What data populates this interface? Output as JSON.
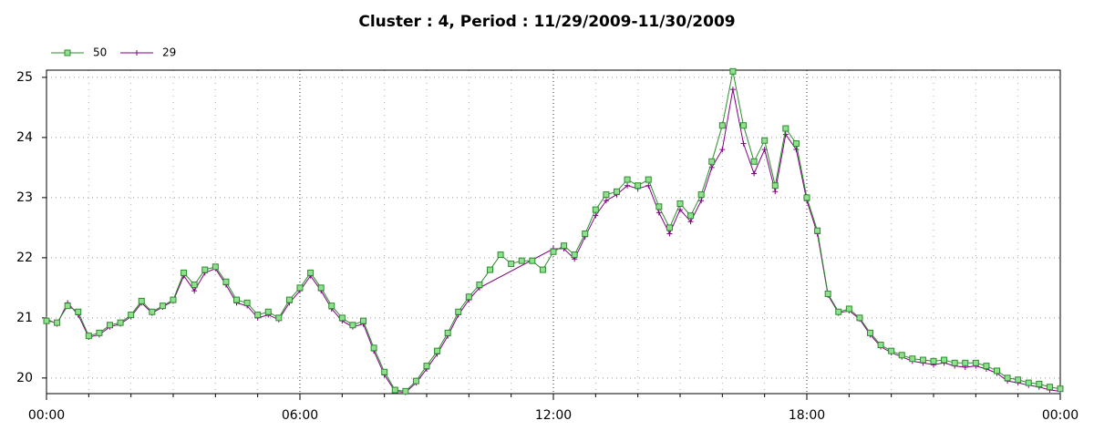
{
  "chart_data": {
    "type": "line",
    "title": "Cluster : 4, Period : 11/29/2009-11/30/2009",
    "xlim": [
      0,
      24
    ],
    "ylim": [
      19.74,
      25.12
    ],
    "xticks": [
      {
        "value": 0,
        "label": "00:00"
      },
      {
        "value": 6,
        "label": "06:00"
      },
      {
        "value": 12,
        "label": "12:00"
      },
      {
        "value": 18,
        "label": "18:00"
      },
      {
        "value": 24,
        "label": "00:00"
      }
    ],
    "xminor_ticks": [
      1,
      2,
      3,
      4,
      5,
      7,
      8,
      9,
      10,
      11,
      13,
      14,
      15,
      16,
      17,
      19,
      20,
      21,
      22,
      23
    ],
    "yticks": [
      20,
      21,
      22,
      23,
      24,
      25
    ],
    "grid": true,
    "legend": "top-left",
    "series": [
      {
        "name": "50",
        "color": "#2e8b2e",
        "marker": "square",
        "x": [
          0,
          0.25,
          0.5,
          0.75,
          1,
          1.25,
          1.5,
          1.75,
          2,
          2.25,
          2.5,
          2.75,
          3,
          3.25,
          3.5,
          3.75,
          4,
          4.25,
          4.5,
          4.75,
          5,
          5.25,
          5.5,
          5.75,
          6,
          6.25,
          6.5,
          6.75,
          7,
          7.25,
          7.5,
          7.75,
          8,
          8.25,
          8.5,
          8.75,
          9,
          9.25,
          9.5,
          9.75,
          10,
          10.25,
          10.5,
          10.75,
          11,
          11.25,
          11.5,
          11.75,
          12,
          12.25,
          12.5,
          12.75,
          13,
          13.25,
          13.5,
          13.75,
          14,
          14.25,
          14.5,
          14.75,
          15,
          15.25,
          15.5,
          15.75,
          16,
          16.25,
          16.5,
          16.75,
          17,
          17.25,
          17.5,
          17.75,
          18,
          18.25,
          18.5,
          18.75,
          19,
          19.25,
          19.5,
          19.75,
          20,
          20.25,
          20.5,
          20.75,
          21,
          21.25,
          21.5,
          21.75,
          22,
          22.25,
          22.5,
          22.75,
          23,
          23.25,
          23.5,
          23.75,
          24
        ],
        "values": [
          20.95,
          20.92,
          21.2,
          21.1,
          20.7,
          20.75,
          20.88,
          20.92,
          21.05,
          21.28,
          21.1,
          21.2,
          21.3,
          21.75,
          21.55,
          21.8,
          21.85,
          21.6,
          21.3,
          21.25,
          21.05,
          21.1,
          21.0,
          21.3,
          21.5,
          21.75,
          21.5,
          21.2,
          21.0,
          20.88,
          20.95,
          20.5,
          20.1,
          19.8,
          19.78,
          19.95,
          20.2,
          20.45,
          20.75,
          21.1,
          21.35,
          21.55,
          21.8,
          22.05,
          21.9,
          21.95,
          21.95,
          21.8,
          22.1,
          22.2,
          22.05,
          22.4,
          22.8,
          23.05,
          23.1,
          23.3,
          23.2,
          23.3,
          22.85,
          22.5,
          22.9,
          22.7,
          23.05,
          23.6,
          24.2,
          25.1,
          24.2,
          23.6,
          23.95,
          23.2,
          24.15,
          23.9,
          23.0,
          22.45,
          21.4,
          21.1,
          21.15,
          21.0,
          20.75,
          20.55,
          20.45,
          20.38,
          20.32,
          20.3,
          20.28,
          20.3,
          20.25,
          20.25,
          20.25,
          20.2,
          20.12,
          20.0,
          19.97,
          19.92,
          19.9,
          19.85,
          19.82
        ]
      },
      {
        "name": "29",
        "color": "#800080",
        "marker": "plus",
        "x": [
          0,
          0.25,
          0.5,
          0.75,
          1,
          1.25,
          1.5,
          1.75,
          2,
          2.25,
          2.5,
          2.75,
          3,
          3.25,
          3.5,
          3.75,
          4,
          4.25,
          4.5,
          4.75,
          5,
          5.25,
          5.5,
          5.75,
          6,
          6.25,
          6.5,
          6.75,
          7,
          7.25,
          7.5,
          7.75,
          8,
          8.25,
          8.5,
          8.75,
          9,
          9.25,
          9.5,
          9.75,
          10,
          10.25,
          12,
          12.25,
          12.5,
          12.75,
          13,
          13.25,
          13.5,
          13.75,
          14,
          14.25,
          14.5,
          14.75,
          15,
          15.25,
          15.5,
          15.75,
          16,
          16.25,
          16.5,
          16.75,
          17,
          17.25,
          17.5,
          17.75,
          18,
          18.25,
          18.5,
          18.75,
          19,
          19.25,
          19.5,
          19.75,
          20,
          20.25,
          20.5,
          20.75,
          21,
          21.25,
          21.5,
          21.75,
          22,
          22.25,
          22.5,
          22.75,
          23,
          23.25,
          23.5,
          23.75,
          24
        ],
        "values": [
          20.98,
          20.9,
          21.25,
          21.05,
          20.68,
          20.72,
          20.85,
          20.9,
          21.02,
          21.25,
          21.08,
          21.18,
          21.28,
          21.7,
          21.45,
          21.75,
          21.82,
          21.55,
          21.25,
          21.2,
          21.0,
          21.05,
          20.97,
          21.25,
          21.45,
          21.7,
          21.45,
          21.15,
          20.95,
          20.85,
          20.9,
          20.45,
          20.05,
          19.78,
          19.76,
          19.92,
          20.15,
          20.4,
          20.7,
          21.05,
          21.3,
          21.5,
          22.15,
          22.15,
          21.98,
          22.35,
          22.7,
          22.95,
          23.05,
          23.2,
          23.15,
          23.2,
          22.75,
          22.4,
          22.8,
          22.6,
          22.95,
          23.5,
          23.8,
          24.8,
          23.9,
          23.4,
          23.8,
          23.1,
          24.05,
          23.8,
          22.95,
          22.4,
          21.38,
          21.08,
          21.12,
          20.98,
          20.72,
          20.52,
          20.42,
          20.35,
          20.28,
          20.25,
          20.22,
          20.25,
          20.2,
          20.18,
          20.2,
          20.15,
          20.08,
          19.95,
          19.92,
          19.88,
          19.85,
          19.8,
          19.78
        ]
      }
    ]
  }
}
